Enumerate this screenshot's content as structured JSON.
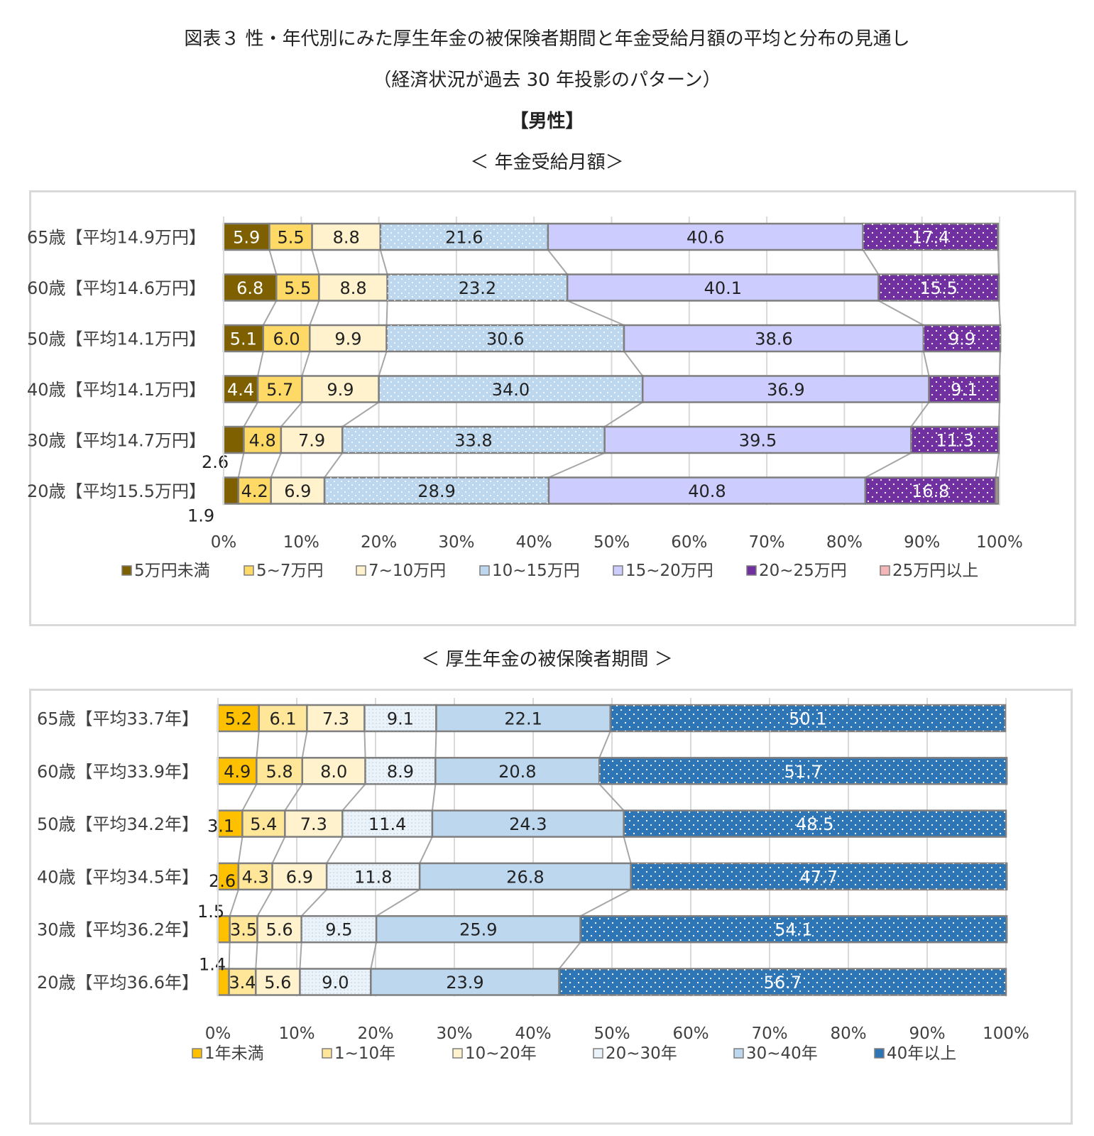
{
  "titles": {
    "line1": "図表３ 性・年代別にみた厚生年金の被保険者期間と年金受給月額の平均と分布の見通し",
    "line2": "（経済状況が過去 30 年投影のパターン）",
    "line3": "【男性】",
    "line4": "＜ 年金受給月額＞",
    "line5": "＜ 厚生年金の被保険者期間 ＞"
  },
  "colors": {
    "pension": [
      "#7f6000",
      "#ffd966",
      "#fff2cc",
      "#bdd7ee",
      "#ccccff",
      "#7030a0",
      "#f4b6b6"
    ],
    "period": [
      "#ffc000",
      "#ffe699",
      "#fff2cc",
      "#eaf3fa",
      "#bdd7ee",
      "#2e75b6"
    ]
  },
  "chart_data": [
    {
      "type": "bar",
      "orientation": "horizontal",
      "stacked": "percent",
      "title": "＜ 年金受給月額＞",
      "categories": [
        "65歳【平均14.9万円】",
        "60歳【平均14.6万円】",
        "50歳【平均14.1万円】",
        "40歳【平均14.1万円】",
        "30歳【平均14.7万円】",
        "20歳【平均15.5万円】"
      ],
      "series": [
        {
          "name": "5万円未満",
          "values": [
            5.9,
            6.8,
            5.1,
            4.4,
            2.6,
            1.9
          ]
        },
        {
          "name": "5~7万円",
          "values": [
            5.5,
            5.5,
            6.0,
            5.7,
            4.8,
            4.2
          ]
        },
        {
          "name": "7~10万円",
          "values": [
            8.8,
            8.8,
            9.9,
            9.9,
            7.9,
            6.9
          ]
        },
        {
          "name": "10~15万円",
          "values": [
            21.6,
            23.2,
            30.6,
            34.0,
            33.8,
            28.9
          ]
        },
        {
          "name": "15~20万円",
          "values": [
            40.6,
            40.1,
            38.6,
            36.9,
            39.5,
            40.8
          ]
        },
        {
          "name": "20~25万円",
          "values": [
            17.4,
            15.5,
            9.9,
            9.1,
            11.3,
            16.8
          ]
        },
        {
          "name": "25万円以上",
          "values": [
            0.0,
            0.0,
            0.0,
            0.0,
            0.0,
            0.3
          ]
        }
      ],
      "labels": [
        [
          "5.9",
          "5.5",
          "8.8",
          "21.6",
          "40.6",
          "17.4",
          ""
        ],
        [
          "6.8",
          "5.5",
          "8.8",
          "23.2",
          "40.1",
          "15.5",
          ""
        ],
        [
          "5.1",
          "6.0",
          "9.9",
          "30.6",
          "38.6",
          "9.9",
          ""
        ],
        [
          "4.4",
          "5.7",
          "9.9",
          "34.0",
          "36.9",
          "9.1",
          ""
        ],
        [
          "2.6",
          "4.8",
          "7.9",
          "33.8",
          "39.5",
          "11.3",
          ""
        ],
        [
          "1.9",
          "4.2",
          "6.9",
          "28.9",
          "40.8",
          "16.8",
          ""
        ]
      ],
      "xticks": [
        "0%",
        "10%",
        "20%",
        "30%",
        "40%",
        "50%",
        "60%",
        "70%",
        "80%",
        "90%",
        "100%"
      ],
      "xlim": [
        0,
        100
      ],
      "grid": true,
      "legend": "bottom"
    },
    {
      "type": "bar",
      "orientation": "horizontal",
      "stacked": "percent",
      "title": "＜ 厚生年金の被保険者期間 ＞",
      "categories": [
        "65歳【平均33.7年】",
        "60歳【平均33.9年】",
        "50歳【平均34.2年】",
        "40歳【平均34.5年】",
        "30歳【平均36.2年】",
        "20歳【平均36.6年】"
      ],
      "series": [
        {
          "name": "1年未満",
          "values": [
            5.2,
            4.9,
            3.1,
            2.6,
            1.5,
            1.4
          ]
        },
        {
          "name": "1~10年",
          "values": [
            6.1,
            5.8,
            5.4,
            4.3,
            3.5,
            3.4
          ]
        },
        {
          "name": "10~20年",
          "values": [
            7.3,
            8.0,
            7.3,
            6.9,
            5.6,
            5.6
          ]
        },
        {
          "name": "20~30年",
          "values": [
            9.1,
            8.9,
            11.4,
            11.8,
            9.5,
            9.0
          ]
        },
        {
          "name": "30~40年",
          "values": [
            22.1,
            20.8,
            24.3,
            26.8,
            25.9,
            23.9
          ]
        },
        {
          "name": "40年以上",
          "values": [
            50.1,
            51.7,
            48.5,
            47.7,
            54.1,
            56.7
          ]
        }
      ],
      "labels": [
        [
          "5.2",
          "6.1",
          "7.3",
          "9.1",
          "22.1",
          "50.1"
        ],
        [
          "4.9",
          "5.8",
          "8.0",
          "8.9",
          "20.8",
          "51.7"
        ],
        [
          "3.1",
          "5.4",
          "7.3",
          "11.4",
          "24.3",
          "48.5"
        ],
        [
          "2.6",
          "4.3",
          "6.9",
          "11.8",
          "26.8",
          "47.7"
        ],
        [
          "1.5",
          "3.5",
          "5.6",
          "9.5",
          "25.9",
          "54.1"
        ],
        [
          "1.4",
          "3.4",
          "5.6",
          "9.0",
          "23.9",
          "56.7"
        ]
      ],
      "xticks": [
        "0%",
        "10%",
        "20%",
        "30%",
        "40%",
        "50%",
        "60%",
        "70%",
        "80%",
        "90%",
        "100%"
      ],
      "xlim": [
        0,
        100
      ],
      "grid": true,
      "legend": "bottom"
    }
  ]
}
